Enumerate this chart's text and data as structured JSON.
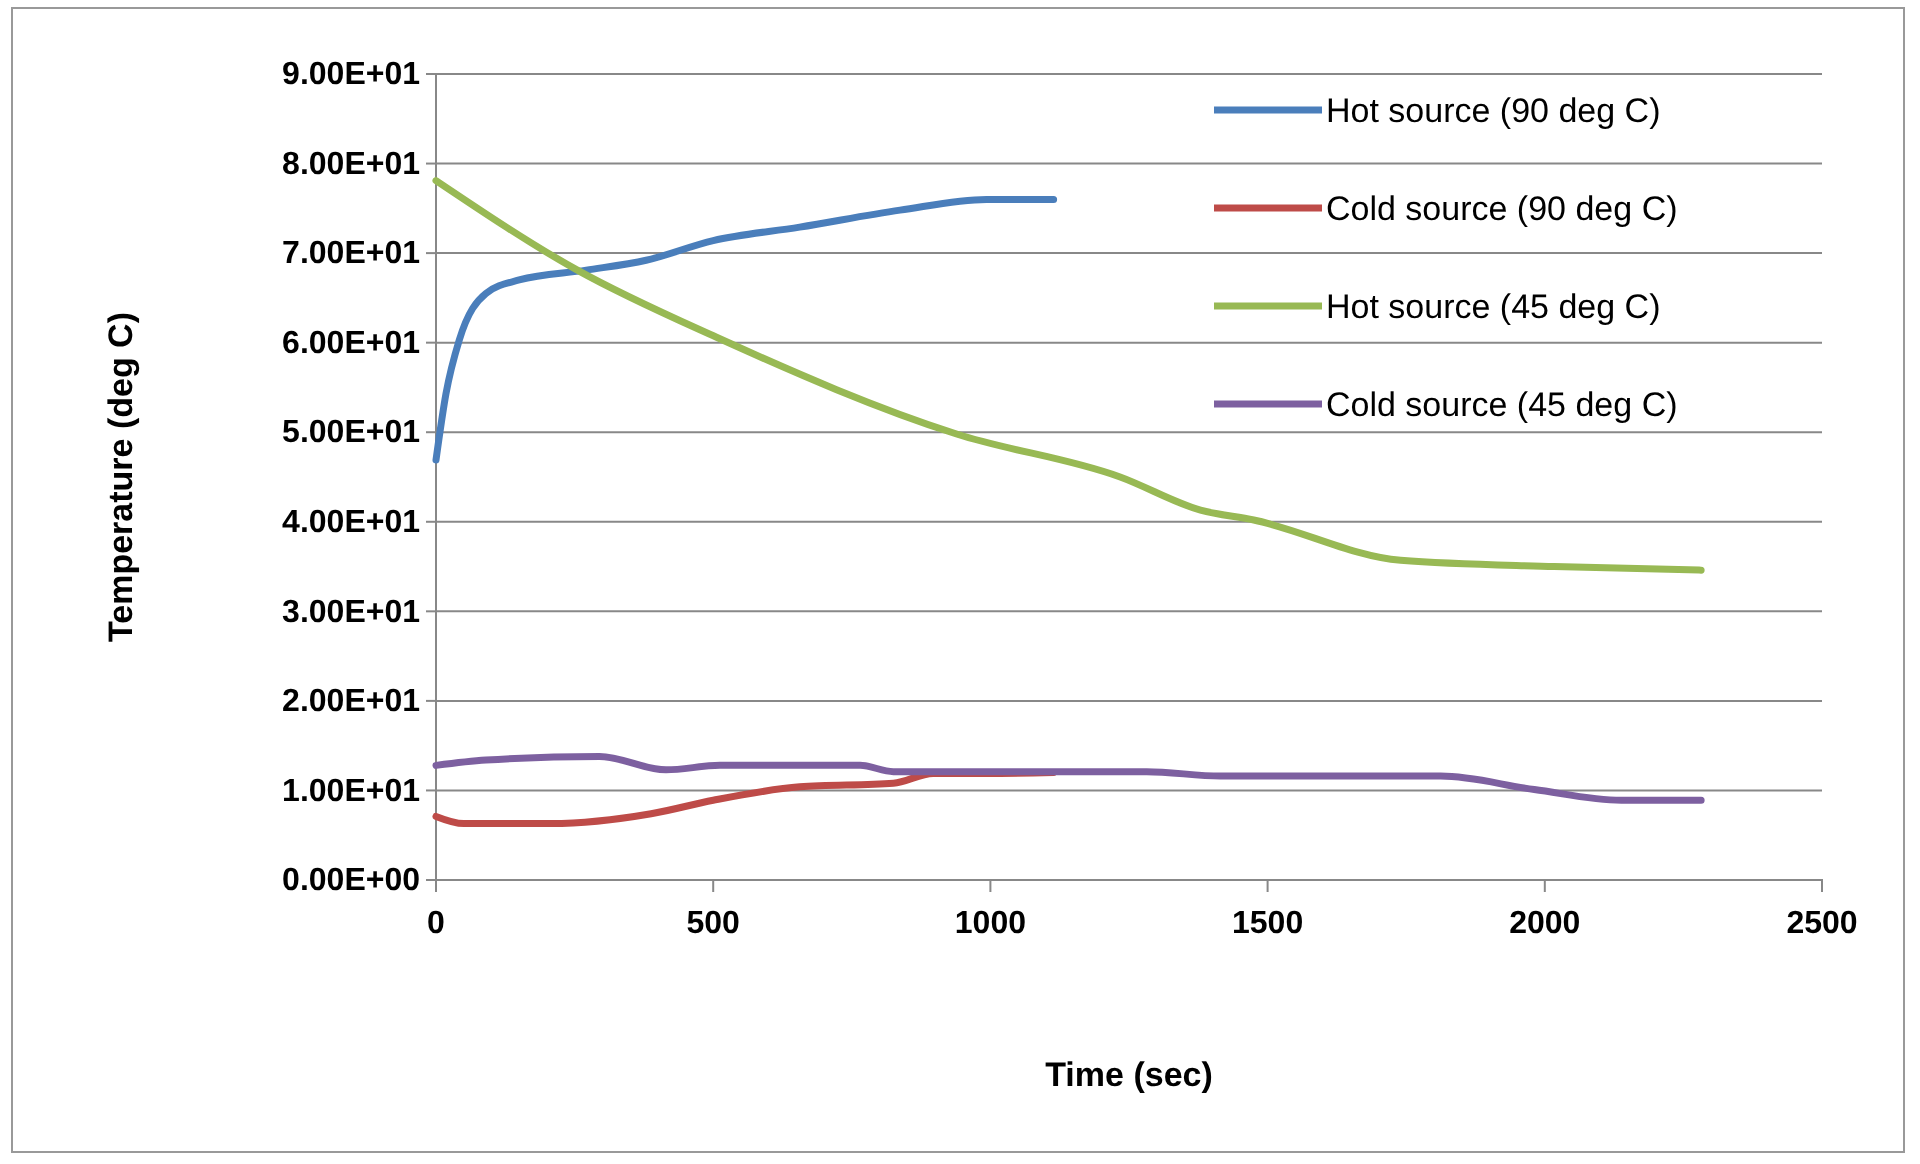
{
  "chart_data": {
    "type": "line",
    "xlabel": "Time (sec)",
    "ylabel": "Temperature (deg C)",
    "xlim": [
      0,
      2500
    ],
    "xticks": [
      0,
      500,
      1000,
      1500,
      2000,
      2500
    ],
    "ylim": [
      0,
      90
    ],
    "yticks": [
      {
        "value": 0,
        "label": "0.00E+00"
      },
      {
        "value": 10,
        "label": "1.00E+01"
      },
      {
        "value": 20,
        "label": "2.00E+01"
      },
      {
        "value": 30,
        "label": "3.00E+01"
      },
      {
        "value": 40,
        "label": "4.00E+01"
      },
      {
        "value": 50,
        "label": "5.00E+01"
      },
      {
        "value": 60,
        "label": "6.00E+01"
      },
      {
        "value": 70,
        "label": "7.00E+01"
      },
      {
        "value": 80,
        "label": "8.00E+01"
      },
      {
        "value": 90,
        "label": "9.00E+01"
      }
    ],
    "grid": "y",
    "legend": "top right",
    "marker": "none",
    "line_style": "solid",
    "series": [
      {
        "name": "Hot source (90 deg C)",
        "color": "#4a7ebb",
        "x": [
          0,
          18,
          42,
          90,
          150,
          271,
          379,
          500,
          656,
          837,
          993,
          1114
        ],
        "values": [
          46.9,
          54.3,
          60.3,
          65.5,
          67,
          68.1,
          69.2,
          71.4,
          72.9,
          74.8,
          76,
          76
        ]
      },
      {
        "name": "Cold source (90 deg C)",
        "color": "#be4b48",
        "x": [
          0,
          50,
          207,
          388,
          500,
          656,
          825,
          897,
          993,
          1114
        ],
        "values": [
          7.1,
          6.3,
          6.3,
          7.4,
          8.9,
          10.4,
          10.8,
          11.9,
          11.9,
          12
        ]
      },
      {
        "name": "Hot source (45 deg C)",
        "color": "#98b954",
        "x": [
          0,
          255,
          506,
          939,
          1234,
          1379,
          1475,
          1740,
          2017,
          2282
        ],
        "values": [
          78.1,
          68.1,
          60.6,
          49.8,
          45,
          41.3,
          40.2,
          35.7,
          35,
          34.6
        ]
      },
      {
        "name": "Cold source (45 deg C)",
        "color": "#7d60a0",
        "x": [
          0,
          90,
          295,
          415,
          512,
          765,
          825,
          1282,
          1415,
          1812,
          1981,
          2138,
          2282
        ],
        "values": [
          12.8,
          13.4,
          13.8,
          12.3,
          12.8,
          12.8,
          12.1,
          12.1,
          11.6,
          11.6,
          10.1,
          8.9,
          8.9
        ]
      }
    ]
  }
}
